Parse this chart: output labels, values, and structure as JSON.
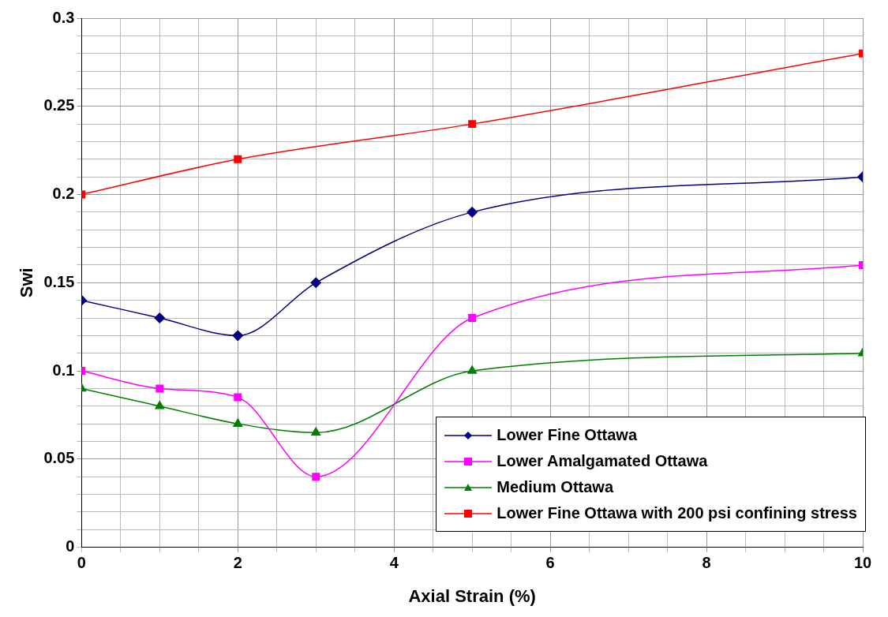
{
  "chart_data": {
    "type": "line",
    "xlabel": "Axial Strain (%)",
    "ylabel": "Swi",
    "xlim": [
      0,
      10
    ],
    "xticks": [
      0,
      {
        "value": 0.5,
        "label": null
      },
      2,
      {
        "value": 1,
        "label": null
      },
      {
        "value": 1.5,
        "label": null
      },
      {
        "value": 2.5,
        "label": null
      },
      {
        "value": 3,
        "label": null
      },
      {
        "value": 3.5,
        "label": null
      },
      4,
      {
        "value": 4.5,
        "label": null
      },
      {
        "value": 5,
        "label": null
      },
      {
        "value": 5.5,
        "label": null
      },
      6,
      {
        "value": 6.5,
        "label": null
      },
      {
        "value": 7,
        "label": null
      },
      {
        "value": 7.5,
        "label": null
      },
      8,
      {
        "value": 8.5,
        "label": null
      },
      {
        "value": 9,
        "label": null
      },
      {
        "value": 9.5,
        "label": null
      },
      10
    ],
    "ylim": [
      0,
      0.3
    ],
    "yticks": [
      0,
      0.05,
      0.1,
      0.15,
      0.2,
      0.25,
      0.3,
      {
        "value": 0.01,
        "label": null
      },
      {
        "value": 0.02,
        "label": null
      },
      {
        "value": 0.03,
        "label": null
      },
      {
        "value": 0.04,
        "label": null
      },
      {
        "value": 0.06,
        "label": null
      },
      {
        "value": 0.07,
        "label": null
      },
      {
        "value": 0.08,
        "label": null
      },
      {
        "value": 0.09,
        "label": null
      },
      {
        "value": 0.11,
        "label": null
      },
      {
        "value": 0.12,
        "label": null
      },
      {
        "value": 0.13,
        "label": null
      },
      {
        "value": 0.14,
        "label": null
      },
      {
        "value": 0.16,
        "label": null
      },
      {
        "value": 0.17,
        "label": null
      },
      {
        "value": 0.18,
        "label": null
      },
      {
        "value": 0.19,
        "label": null
      },
      {
        "value": 0.21,
        "label": null
      },
      {
        "value": 0.22,
        "label": null
      },
      {
        "value": 0.23,
        "label": null
      },
      {
        "value": 0.24,
        "label": null
      },
      {
        "value": 0.26,
        "label": null
      },
      {
        "value": 0.27,
        "label": null
      },
      {
        "value": 0.28,
        "label": null
      },
      {
        "value": 0.29,
        "label": null
      }
    ],
    "grid": true,
    "legend": "bottom right",
    "line_style": "solid",
    "series": [
      {
        "name": "Lower Fine Ottawa",
        "color": "#000080",
        "marker": "diamond",
        "x": [
          0,
          1,
          2,
          3,
          5,
          10
        ],
        "values": [
          0.14,
          0.13,
          0.12,
          0.15,
          0.19,
          0.21
        ]
      },
      {
        "name": "Lower Amalgamated Ottawa",
        "color": "#ff00ff",
        "marker": "square",
        "x": [
          0,
          1,
          2,
          3,
          5,
          10
        ],
        "values": [
          0.1,
          0.09,
          0.085,
          0.04,
          0.13,
          0.16
        ]
      },
      {
        "name": "Medium Ottawa",
        "color": "#008000",
        "marker": "triangle",
        "x": [
          0,
          1,
          2,
          3,
          5,
          10
        ],
        "values": [
          0.09,
          0.08,
          0.07,
          0.065,
          0.1,
          0.11
        ]
      },
      {
        "name": "Lower Fine Ottawa with 200 psi confining stress",
        "color": "#ff0000",
        "marker": "square",
        "x": [
          0,
          2,
          5,
          10
        ],
        "values": [
          0.2,
          0.22,
          0.24,
          0.28
        ]
      }
    ]
  }
}
